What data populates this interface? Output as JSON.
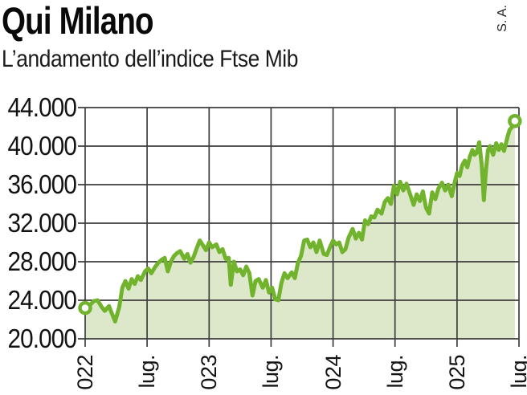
{
  "header": {
    "title": "Qui Milano",
    "subtitle": "L’andamento dell’indice Ftse Mib",
    "source": "S. A."
  },
  "chart_data": {
    "type": "area",
    "title": "L’andamento dell’indice Ftse Mib",
    "series_name": "Ftse Mib",
    "xlabel": "",
    "ylabel": "",
    "grid": true,
    "legend": "none",
    "ylim": [
      20000,
      44000
    ],
    "y_tick_values": [
      44000,
      40000,
      36000,
      32000,
      28000,
      24000,
      20000
    ],
    "y_tick_labels": [
      "44.000",
      "40.000",
      "36.000",
      "32.000",
      "28.000",
      "24.000",
      "20.000"
    ],
    "x_tick_months": [
      0,
      6,
      12,
      18,
      24,
      30,
      36,
      42
    ],
    "x_tick_labels": [
      "022",
      "lug.",
      "023",
      "lug.",
      "024",
      "lug.",
      "025",
      "lug."
    ],
    "x_range_months": [
      0,
      42
    ],
    "line_color": "#72b32e",
    "fill_color": "#dde8ca",
    "grid_color": "#3d3d3d",
    "start_marker_value": 23200,
    "end_marker_value": 42600,
    "points": [
      [
        0,
        23200
      ],
      [
        0.4,
        23400
      ],
      [
        0.8,
        23900
      ],
      [
        1.2,
        24000
      ],
      [
        1.6,
        23300
      ],
      [
        1.9,
        22900
      ],
      [
        2.3,
        23400
      ],
      [
        2.6,
        22600
      ],
      [
        2.9,
        21800
      ],
      [
        3.3,
        23300
      ],
      [
        3.6,
        25300
      ],
      [
        3.9,
        26000
      ],
      [
        4.2,
        25200
      ],
      [
        4.5,
        26200
      ],
      [
        4.8,
        25700
      ],
      [
        5.1,
        26500
      ],
      [
        5.4,
        26100
      ],
      [
        5.8,
        27000
      ],
      [
        6.1,
        27300
      ],
      [
        6.4,
        26800
      ],
      [
        6.8,
        27500
      ],
      [
        7.1,
        27900
      ],
      [
        7.4,
        28200
      ],
      [
        7.7,
        28400
      ],
      [
        8.0,
        27000
      ],
      [
        8.3,
        28000
      ],
      [
        8.6,
        28600
      ],
      [
        8.9,
        28900
      ],
      [
        9.2,
        29100
      ],
      [
        9.6,
        28300
      ],
      [
        9.9,
        28800
      ],
      [
        10.2,
        27900
      ],
      [
        10.5,
        28500
      ],
      [
        10.8,
        29400
      ],
      [
        11.1,
        30200
      ],
      [
        11.4,
        29700
      ],
      [
        11.7,
        29200
      ],
      [
        12.0,
        30000
      ],
      [
        12.3,
        29500
      ],
      [
        12.7,
        29800
      ],
      [
        13.0,
        29000
      ],
      [
        13.3,
        29300
      ],
      [
        13.6,
        28300
      ],
      [
        13.9,
        28400
      ],
      [
        14.1,
        25600
      ],
      [
        14.4,
        28000
      ],
      [
        14.7,
        27000
      ],
      [
        15.0,
        27200
      ],
      [
        15.3,
        26600
      ],
      [
        15.6,
        27500
      ],
      [
        15.9,
        26800
      ],
      [
        16.2,
        24500
      ],
      [
        16.5,
        26000
      ],
      [
        16.8,
        26200
      ],
      [
        17.2,
        25300
      ],
      [
        17.5,
        26100
      ],
      [
        17.8,
        24800
      ],
      [
        18.1,
        25300
      ],
      [
        18.4,
        24100
      ],
      [
        18.7,
        24000
      ],
      [
        19.0,
        25800
      ],
      [
        19.3,
        26800
      ],
      [
        19.6,
        26300
      ],
      [
        20.0,
        26900
      ],
      [
        20.3,
        26300
      ],
      [
        20.6,
        27900
      ],
      [
        20.9,
        28600
      ],
      [
        21.2,
        30200
      ],
      [
        21.5,
        30300
      ],
      [
        21.8,
        29500
      ],
      [
        22.1,
        30000
      ],
      [
        22.4,
        29000
      ],
      [
        22.7,
        30200
      ],
      [
        23.1,
        28800
      ],
      [
        23.4,
        28700
      ],
      [
        23.7,
        29500
      ],
      [
        24.0,
        30200
      ],
      [
        24.3,
        29800
      ],
      [
        24.6,
        30000
      ],
      [
        24.9,
        29000
      ],
      [
        25.2,
        29300
      ],
      [
        25.5,
        30500
      ],
      [
        25.9,
        31400
      ],
      [
        26.2,
        30400
      ],
      [
        26.5,
        31000
      ],
      [
        26.8,
        30300
      ],
      [
        27.1,
        32300
      ],
      [
        27.4,
        31900
      ],
      [
        27.7,
        32700
      ],
      [
        28.0,
        32600
      ],
      [
        28.3,
        33400
      ],
      [
        28.7,
        33000
      ],
      [
        29.0,
        34200
      ],
      [
        29.3,
        34600
      ],
      [
        29.6,
        34000
      ],
      [
        29.9,
        35900
      ],
      [
        30.2,
        35000
      ],
      [
        30.5,
        36300
      ],
      [
        30.8,
        35400
      ],
      [
        31.1,
        36100
      ],
      [
        31.4,
        35200
      ],
      [
        31.8,
        33900
      ],
      [
        32.1,
        35000
      ],
      [
        32.4,
        34300
      ],
      [
        32.7,
        35300
      ],
      [
        33.0,
        33600
      ],
      [
        33.3,
        33000
      ],
      [
        33.6,
        35200
      ],
      [
        33.9,
        34500
      ],
      [
        34.2,
        35600
      ],
      [
        34.55,
        36200
      ],
      [
        34.85,
        35400
      ],
      [
        35.15,
        36000
      ],
      [
        35.5,
        34800
      ],
      [
        35.75,
        36100
      ],
      [
        36.0,
        37200
      ],
      [
        36.25,
        36900
      ],
      [
        36.5,
        38000
      ],
      [
        36.75,
        38500
      ],
      [
        37.0,
        37800
      ],
      [
        37.25,
        38900
      ],
      [
        37.5,
        39600
      ],
      [
        37.7,
        39100
      ],
      [
        37.9,
        39300
      ],
      [
        38.15,
        40400
      ],
      [
        38.4,
        38000
      ],
      [
        38.6,
        34400
      ],
      [
        38.8,
        37500
      ],
      [
        39.0,
        39600
      ],
      [
        39.2,
        40000
      ],
      [
        39.5,
        39100
      ],
      [
        39.8,
        40300
      ],
      [
        40.05,
        39600
      ],
      [
        40.3,
        40200
      ],
      [
        40.55,
        39500
      ],
      [
        40.9,
        41000
      ],
      [
        41.1,
        41700
      ],
      [
        41.35,
        42000
      ],
      [
        41.6,
        42600
      ]
    ]
  }
}
